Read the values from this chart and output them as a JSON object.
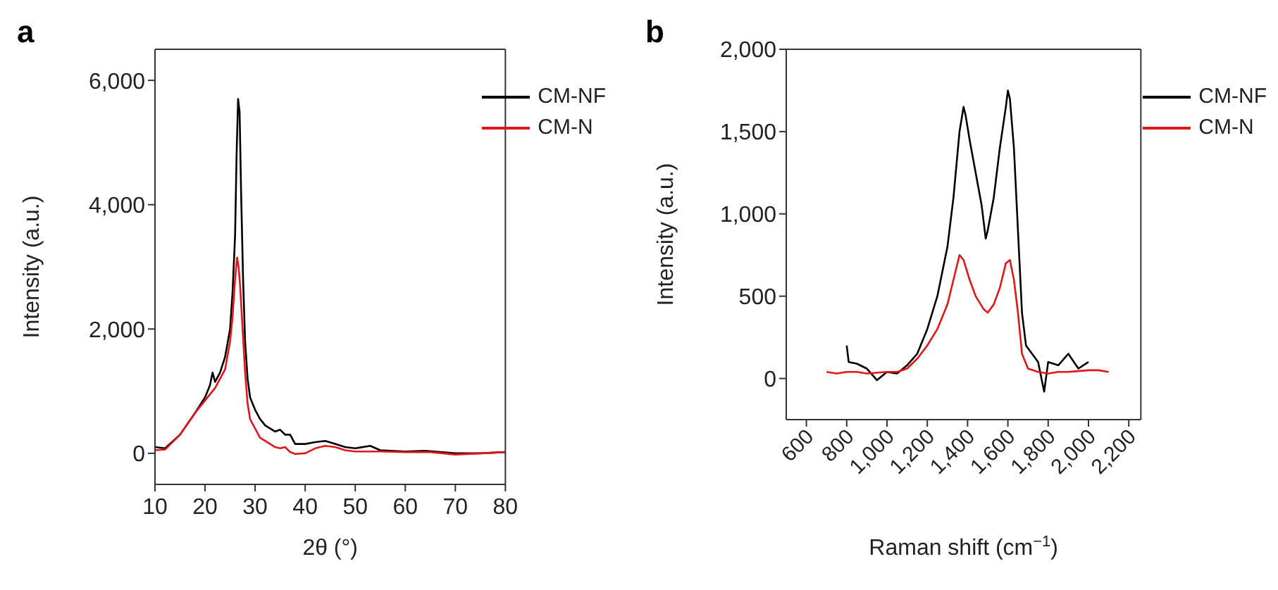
{
  "chart_data": [
    {
      "type": "line",
      "title": "a",
      "xlabel": "2θ (°)",
      "ylabel": "Intensity (a.u.)",
      "xlim": [
        10,
        80
      ],
      "xticks": [
        10,
        20,
        30,
        40,
        50,
        60,
        70,
        80
      ],
      "ylim": [
        -500,
        6500
      ],
      "yticks": [
        {
          "value": 0,
          "label": "0"
        },
        {
          "value": 2000,
          "label": "2,000"
        },
        {
          "value": 4000,
          "label": "4,000"
        },
        {
          "value": 6000,
          "label": "6,000"
        }
      ],
      "legend": "top right",
      "series": [
        {
          "name": "CM-NF",
          "color": "#000000",
          "x": [
            10,
            12,
            15,
            18,
            20,
            21,
            21.5,
            22,
            23,
            24,
            25,
            25.5,
            26,
            26.3,
            26.6,
            26.9,
            27.2,
            27.6,
            28,
            28.5,
            29,
            30,
            31,
            32,
            33,
            34,
            35,
            36,
            37,
            38,
            40,
            42,
            44,
            46,
            48,
            50,
            53,
            55,
            60,
            64,
            70,
            75,
            80
          ],
          "values": [
            100,
            80,
            300,
            650,
            900,
            1100,
            1300,
            1150,
            1300,
            1550,
            2000,
            2600,
            3500,
            4800,
            5700,
            5500,
            4200,
            2800,
            1800,
            1200,
            900,
            700,
            550,
            450,
            400,
            350,
            380,
            300,
            300,
            150,
            150,
            180,
            200,
            150,
            100,
            80,
            120,
            50,
            30,
            40,
            0,
            0,
            20
          ]
        },
        {
          "name": "CM-N",
          "color": "#e0161b",
          "x": [
            10,
            12,
            15,
            18,
            20,
            22,
            24,
            25,
            25.5,
            26,
            26.4,
            26.7,
            27,
            27.5,
            28,
            28.5,
            29,
            30,
            31,
            32,
            33,
            34,
            35,
            36,
            37,
            38,
            40,
            42,
            44,
            46,
            48,
            50,
            55,
            60,
            65,
            70,
            75,
            80
          ],
          "values": [
            50,
            60,
            300,
            650,
            850,
            1050,
            1350,
            1800,
            2200,
            2800,
            3150,
            3000,
            2700,
            2000,
            1300,
            800,
            550,
            400,
            250,
            200,
            150,
            100,
            80,
            100,
            20,
            -10,
            0,
            80,
            120,
            100,
            50,
            30,
            30,
            20,
            20,
            -20,
            0,
            20
          ]
        }
      ]
    },
    {
      "type": "line",
      "title": "b",
      "xlabel": "Raman shift (cm$^{−1}$)",
      "ylabel": "Intensity (a.u.)",
      "xlim": [
        500,
        2260
      ],
      "xticks": [
        {
          "value": 600,
          "label": "600"
        },
        {
          "value": 800,
          "label": "800"
        },
        {
          "value": 1000,
          "label": "1,000"
        },
        {
          "value": 1200,
          "label": "1,200"
        },
        {
          "value": 1400,
          "label": "1,400"
        },
        {
          "value": 1600,
          "label": "1,600"
        },
        {
          "value": 1800,
          "label": "1,800"
        },
        {
          "value": 2000,
          "label": "2,000"
        },
        {
          "value": 2200,
          "label": "2,200"
        }
      ],
      "ylim": [
        -250,
        2000
      ],
      "yticks": [
        {
          "value": 0,
          "label": "0"
        },
        {
          "value": 500,
          "label": "500"
        },
        {
          "value": 1000,
          "label": "1,000"
        },
        {
          "value": 1500,
          "label": "1,500"
        },
        {
          "value": 2000,
          "label": "2,000"
        }
      ],
      "legend": "top right",
      "series": [
        {
          "name": "CM-NF",
          "color": "#000000",
          "x": [
            800,
            810,
            850,
            900,
            950,
            1000,
            1050,
            1100,
            1150,
            1200,
            1250,
            1300,
            1330,
            1360,
            1380,
            1390,
            1410,
            1440,
            1470,
            1490,
            1500,
            1530,
            1560,
            1590,
            1600,
            1610,
            1630,
            1650,
            1670,
            1690,
            1720,
            1750,
            1780,
            1800,
            1850,
            1900,
            1950,
            2000
          ],
          "values": [
            200,
            100,
            90,
            60,
            -10,
            40,
            30,
            80,
            150,
            300,
            500,
            800,
            1100,
            1500,
            1650,
            1600,
            1450,
            1250,
            1050,
            850,
            900,
            1100,
            1400,
            1650,
            1750,
            1700,
            1400,
            900,
            400,
            200,
            150,
            100,
            -80,
            100,
            80,
            150,
            60,
            100
          ]
        },
        {
          "name": "CM-N",
          "color": "#e0161b",
          "x": [
            700,
            750,
            800,
            850,
            900,
            1000,
            1050,
            1100,
            1150,
            1200,
            1250,
            1300,
            1330,
            1360,
            1380,
            1410,
            1440,
            1480,
            1500,
            1530,
            1560,
            1590,
            1610,
            1630,
            1650,
            1670,
            1700,
            1750,
            1800,
            1850,
            1900,
            2000,
            2050,
            2100
          ],
          "values": [
            40,
            30,
            40,
            40,
            30,
            40,
            40,
            60,
            120,
            200,
            300,
            450,
            600,
            750,
            720,
            600,
            500,
            420,
            400,
            450,
            550,
            700,
            720,
            600,
            400,
            150,
            60,
            40,
            30,
            40,
            40,
            50,
            50,
            40
          ]
        }
      ]
    }
  ]
}
